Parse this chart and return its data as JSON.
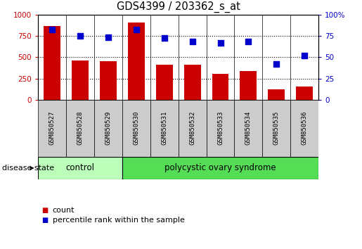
{
  "title": "GDS4399 / 203362_s_at",
  "samples": [
    "GSM850527",
    "GSM850528",
    "GSM850529",
    "GSM850530",
    "GSM850531",
    "GSM850532",
    "GSM850533",
    "GSM850534",
    "GSM850535",
    "GSM850536"
  ],
  "counts": [
    870,
    460,
    450,
    910,
    410,
    415,
    305,
    340,
    120,
    155
  ],
  "percentile_ranks": [
    83,
    75,
    74,
    83,
    73,
    69,
    67,
    69,
    42,
    52
  ],
  "bar_color": "#cc0000",
  "dot_color": "#0000cc",
  "left_ylim": [
    0,
    1000
  ],
  "right_ylim": [
    0,
    100
  ],
  "left_yticks": [
    0,
    250,
    500,
    750,
    1000
  ],
  "right_yticks": [
    0,
    25,
    50,
    75,
    100
  ],
  "left_yticklabels": [
    "0",
    "250",
    "500",
    "750",
    "1000"
  ],
  "right_yticklabels": [
    "0",
    "25",
    "50",
    "75",
    "100%"
  ],
  "control_count": 3,
  "pcos_count": 7,
  "control_label": "control",
  "pcos_label": "polycystic ovary syndrome",
  "control_color": "#bbffbb",
  "pcos_color": "#55dd55",
  "sample_box_color": "#cccccc",
  "disease_state_label": "disease state",
  "legend_count_label": "count",
  "legend_pct_label": "percentile rank within the sample",
  "grid_style": "dotted",
  "bar_width": 0.6,
  "dot_size": 35,
  "tick_fontsize": 7.5,
  "label_fontsize": 8.5,
  "title_fontsize": 10.5
}
